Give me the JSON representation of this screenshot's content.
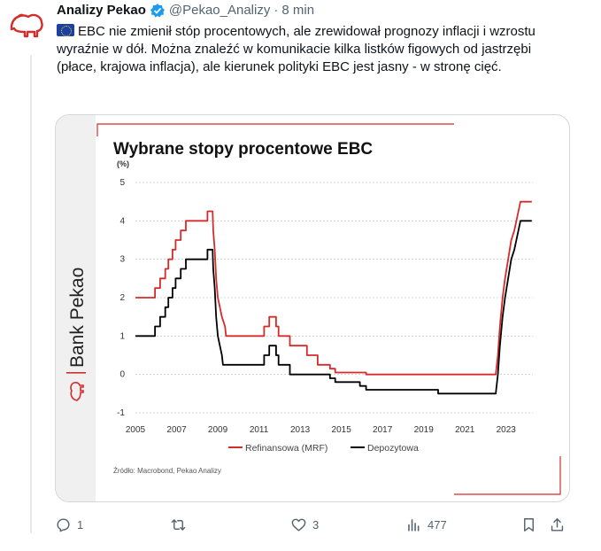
{
  "tweet": {
    "author_name": "Analizy Pekao",
    "handle": "@Pekao_Analizy",
    "separator": "·",
    "time": "8 min",
    "text": "EBC nie zmienił stóp procentowych, ale zrewidował prognozy inflacji i wzrostu wyraźnie w dół. Można znaleźć w komunikacie kilka listków figowych od jastrzębi (płace, krajowa inflacja), ale kierunek polityki EBC jest jasny - w stronę cięć."
  },
  "card": {
    "brand_text": "Bank Pekao",
    "source_note": "Źródło: Macrobond, Pekao Analizy"
  },
  "chart_data": {
    "type": "line",
    "title": "Wybrane stopy procentowe EBC",
    "ylabel": "(%)",
    "xlabel": "",
    "ylim": [
      -1,
      5
    ],
    "xlim": [
      2005,
      2024.3
    ],
    "x_ticks": [
      "2005",
      "2007",
      "2009",
      "2011",
      "2013",
      "2015",
      "2017",
      "2019",
      "2021",
      "2023"
    ],
    "y_ticks": [
      "5",
      "4",
      "3",
      "2",
      "1",
      "0",
      "-1"
    ],
    "grid": true,
    "legend_position": "bottom",
    "series": [
      {
        "name": "Refinansowa (MRF)",
        "color": "#d62b2b",
        "points": [
          [
            2005.0,
            2.0
          ],
          [
            2005.95,
            2.0
          ],
          [
            2005.95,
            2.25
          ],
          [
            2006.2,
            2.25
          ],
          [
            2006.2,
            2.5
          ],
          [
            2006.45,
            2.5
          ],
          [
            2006.45,
            2.75
          ],
          [
            2006.6,
            2.75
          ],
          [
            2006.6,
            3.0
          ],
          [
            2006.8,
            3.0
          ],
          [
            2006.8,
            3.25
          ],
          [
            2006.95,
            3.25
          ],
          [
            2006.95,
            3.5
          ],
          [
            2007.2,
            3.5
          ],
          [
            2007.2,
            3.75
          ],
          [
            2007.45,
            3.75
          ],
          [
            2007.45,
            4.0
          ],
          [
            2008.5,
            4.0
          ],
          [
            2008.5,
            4.25
          ],
          [
            2008.75,
            4.25
          ],
          [
            2008.78,
            3.75
          ],
          [
            2008.85,
            3.25
          ],
          [
            2008.92,
            2.5
          ],
          [
            2009.0,
            2.0
          ],
          [
            2009.2,
            1.5
          ],
          [
            2009.35,
            1.25
          ],
          [
            2009.4,
            1.0
          ],
          [
            2011.25,
            1.0
          ],
          [
            2011.25,
            1.25
          ],
          [
            2011.5,
            1.25
          ],
          [
            2011.5,
            1.5
          ],
          [
            2011.83,
            1.5
          ],
          [
            2011.83,
            1.25
          ],
          [
            2011.95,
            1.25
          ],
          [
            2011.95,
            1.0
          ],
          [
            2012.5,
            1.0
          ],
          [
            2012.5,
            0.75
          ],
          [
            2013.33,
            0.75
          ],
          [
            2013.33,
            0.5
          ],
          [
            2013.85,
            0.5
          ],
          [
            2013.85,
            0.25
          ],
          [
            2014.45,
            0.25
          ],
          [
            2014.45,
            0.15
          ],
          [
            2014.7,
            0.15
          ],
          [
            2014.7,
            0.05
          ],
          [
            2016.2,
            0.05
          ],
          [
            2016.2,
            0.0
          ],
          [
            2022.5,
            0.0
          ],
          [
            2022.6,
            0.5
          ],
          [
            2022.7,
            1.25
          ],
          [
            2022.83,
            2.0
          ],
          [
            2022.95,
            2.5
          ],
          [
            2023.1,
            3.0
          ],
          [
            2023.25,
            3.5
          ],
          [
            2023.4,
            3.75
          ],
          [
            2023.5,
            4.0
          ],
          [
            2023.6,
            4.25
          ],
          [
            2023.7,
            4.5
          ],
          [
            2024.25,
            4.5
          ]
        ]
      },
      {
        "name": "Depozytowa",
        "color": "#000000",
        "points": [
          [
            2005.0,
            1.0
          ],
          [
            2005.95,
            1.0
          ],
          [
            2005.95,
            1.25
          ],
          [
            2006.2,
            1.25
          ],
          [
            2006.2,
            1.5
          ],
          [
            2006.45,
            1.5
          ],
          [
            2006.45,
            1.75
          ],
          [
            2006.6,
            1.75
          ],
          [
            2006.6,
            2.0
          ],
          [
            2006.8,
            2.0
          ],
          [
            2006.8,
            2.25
          ],
          [
            2006.95,
            2.25
          ],
          [
            2006.95,
            2.5
          ],
          [
            2007.2,
            2.5
          ],
          [
            2007.2,
            2.75
          ],
          [
            2007.45,
            2.75
          ],
          [
            2007.45,
            3.0
          ],
          [
            2008.5,
            3.0
          ],
          [
            2008.5,
            3.25
          ],
          [
            2008.75,
            3.25
          ],
          [
            2008.78,
            2.75
          ],
          [
            2008.85,
            2.25
          ],
          [
            2008.92,
            1.5
          ],
          [
            2009.0,
            1.0
          ],
          [
            2009.2,
            0.5
          ],
          [
            2009.25,
            0.25
          ],
          [
            2011.25,
            0.25
          ],
          [
            2011.25,
            0.5
          ],
          [
            2011.5,
            0.5
          ],
          [
            2011.5,
            0.75
          ],
          [
            2011.83,
            0.75
          ],
          [
            2011.83,
            0.5
          ],
          [
            2011.95,
            0.5
          ],
          [
            2011.95,
            0.25
          ],
          [
            2012.5,
            0.25
          ],
          [
            2012.5,
            0.0
          ],
          [
            2014.45,
            0.0
          ],
          [
            2014.45,
            -0.1
          ],
          [
            2014.7,
            -0.1
          ],
          [
            2014.7,
            -0.2
          ],
          [
            2015.9,
            -0.2
          ],
          [
            2015.9,
            -0.3
          ],
          [
            2016.2,
            -0.3
          ],
          [
            2016.2,
            -0.4
          ],
          [
            2019.7,
            -0.4
          ],
          [
            2019.7,
            -0.5
          ],
          [
            2022.5,
            -0.5
          ],
          [
            2022.6,
            0.0
          ],
          [
            2022.7,
            0.75
          ],
          [
            2022.83,
            1.5
          ],
          [
            2022.95,
            2.0
          ],
          [
            2023.1,
            2.5
          ],
          [
            2023.25,
            3.0
          ],
          [
            2023.4,
            3.25
          ],
          [
            2023.5,
            3.5
          ],
          [
            2023.6,
            3.75
          ],
          [
            2023.7,
            4.0
          ],
          [
            2024.25,
            4.0
          ]
        ]
      }
    ]
  },
  "actions": {
    "reply_count": "1",
    "retweet_count": "",
    "like_count": "3",
    "views_count": "477"
  },
  "colors": {
    "brand_red": "#d62b2b",
    "verified_blue": "#1d9bf0",
    "muted_text": "#536471",
    "border": "#cfd9de"
  }
}
